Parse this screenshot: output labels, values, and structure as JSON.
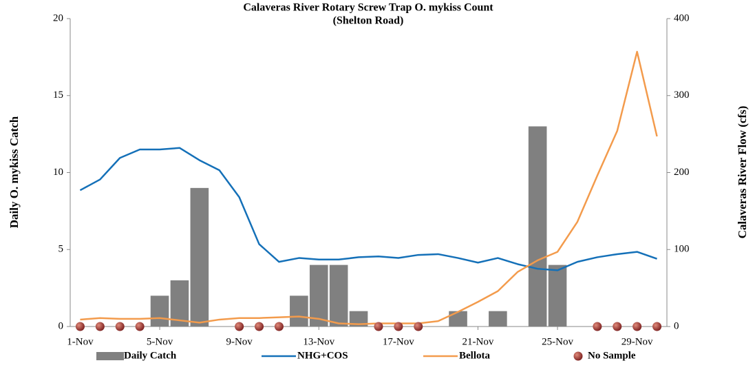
{
  "chart_data": {
    "type": "bar",
    "title": "Calaveras River Rotary Screw Trap O. mykiss Count",
    "subtitle": "(Shelton Road)",
    "ylabel": "Daily O. mykiss Catch",
    "y2label": "Calaveras River Flow (cfs)",
    "categories": [
      "1-Nov",
      null,
      null,
      null,
      "5-Nov",
      null,
      null,
      null,
      "9-Nov",
      null,
      null,
      null,
      "13-Nov",
      null,
      null,
      null,
      "17-Nov",
      null,
      null,
      null,
      "21-Nov",
      null,
      null,
      null,
      "25-Nov",
      null,
      null,
      null,
      "29-Nov",
      null
    ],
    "series": [
      {
        "name": "Daily Catch",
        "type": "bar",
        "color": "#808080",
        "values": [
          null,
          null,
          null,
          null,
          2,
          3,
          9,
          0,
          null,
          null,
          null,
          2,
          4,
          4,
          1,
          null,
          null,
          null,
          0,
          1,
          0,
          1,
          0,
          13,
          4,
          0,
          null,
          null,
          null,
          null
        ]
      },
      {
        "name": "NHG+COS",
        "type": "line",
        "axis": "y2",
        "color": "#1470b8",
        "values": [
          177,
          191,
          219,
          230,
          230,
          232,
          216,
          203,
          168,
          107,
          84,
          89,
          87,
          87,
          90,
          91,
          89,
          93,
          94,
          89,
          83,
          89,
          81,
          75,
          73,
          84,
          90,
          94,
          97,
          88
        ]
      },
      {
        "name": "Bellota",
        "type": "line",
        "axis": "y2",
        "color": "#f39b4c",
        "values": [
          9,
          11,
          10,
          10,
          11,
          8,
          5,
          9,
          11,
          11,
          12,
          13,
          10,
          4,
          3,
          4,
          4,
          4,
          7,
          19,
          32,
          46,
          71,
          86,
          97,
          136,
          196,
          254,
          357,
          247
        ]
      },
      {
        "name": "No Sample",
        "type": "scatter",
        "color": "#8b2a2a",
        "values": [
          0,
          0,
          0,
          0,
          null,
          null,
          null,
          null,
          0,
          0,
          0,
          null,
          null,
          null,
          null,
          0,
          0,
          0,
          null,
          null,
          null,
          null,
          null,
          null,
          null,
          null,
          0,
          0,
          0,
          0
        ]
      }
    ],
    "ylim": [
      0,
      20
    ],
    "yticks": [
      0,
      5,
      10,
      15,
      20
    ],
    "y2lim": [
      0,
      400
    ],
    "y2ticks": [
      0,
      100,
      200,
      300,
      400
    ],
    "legend": "bottom"
  }
}
